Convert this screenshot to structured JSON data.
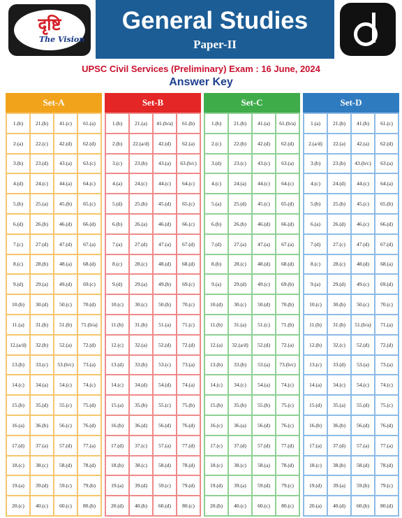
{
  "header": {
    "logo_hindi": "दृष्टि",
    "logo_sub": "The Vision",
    "title": "General Studies",
    "paper": "Paper-II",
    "exam": "UPSC Civil Services (Preliminary) Exam : 16 June, 2024",
    "answer_key": "Answer Key",
    "colors": {
      "banner": "#1c5d96",
      "exam_text": "#c8102e",
      "answer_key_text": "#1f3f8f"
    }
  },
  "sets": [
    {
      "name": "Set-A",
      "color": "#f2a31c",
      "columns": [
        [
          "1.(b)",
          "2.(a)",
          "3.(b)",
          "4.(d)",
          "5.(b)",
          "6.(d)",
          "7.(c)",
          "8.(c)",
          "9.(d)",
          "10.(b)",
          "11.(a)",
          "12.(a/d)",
          "13.(b)",
          "14.(c)",
          "15.(b)",
          "16.(a)",
          "17.(d)",
          "18.(c)",
          "19.(a)",
          "20.(c)"
        ],
        [
          "21.(b)",
          "22.(c)",
          "23.(d)",
          "24.(c)",
          "25.(a)",
          "26.(b)",
          "27.(d)",
          "28.(b)",
          "29.(a)",
          "30.(d)",
          "31.(b)",
          "32.(b)",
          "33.(c)",
          "34.(a)",
          "35.(d)",
          "36.(b)",
          "37.(a)",
          "38.(c)",
          "39.(d)",
          "40.(c)"
        ],
        [
          "41.(c)",
          "42.(d)",
          "43.(a)",
          "44.(a)",
          "45.(b)",
          "46.(d)",
          "47.(d)",
          "48.(a)",
          "49.(d)",
          "50.(c)",
          "51.(b)",
          "52.(a)",
          "53.(b/c)",
          "54.(c)",
          "55.(c)",
          "56.(c)",
          "57.(d)",
          "58.(d)",
          "59.(c)",
          "60.(c)"
        ],
        [
          "61.(a)",
          "62.(d)",
          "63.(c)",
          "64.(c)",
          "65.(c)",
          "66.(d)",
          "67.(a)",
          "68.(d)",
          "69.(c)",
          "70.(d)",
          "71.(b/a)",
          "72.(d)",
          "73.(a)",
          "74.(c)",
          "75.(d)",
          "76.(d)",
          "77.(a)",
          "78.(d)",
          "79.(b)",
          "80.(b)"
        ]
      ]
    },
    {
      "name": "Set-B",
      "color": "#e52626",
      "columns": [
        [
          "1.(b)",
          "2.(b)",
          "3.(c)",
          "4.(a)",
          "5.(d)",
          "6.(b)",
          "7.(a)",
          "8.(c)",
          "9.(d)",
          "10.(c)",
          "11.(b)",
          "12.(c)",
          "13.(d)",
          "14.(c)",
          "15.(a)",
          "16.(b)",
          "17.(d)",
          "18.(b)",
          "19.(a)",
          "20.(d)"
        ],
        [
          "21.(a)",
          "22.(a/d)",
          "23.(b)",
          "24.(c)",
          "25.(b)",
          "26.(a)",
          "27.(d)",
          "28.(c)",
          "29.(a)",
          "30.(c)",
          "31.(b)",
          "32.(a)",
          "33.(b)",
          "34.(d)",
          "35.(b)",
          "36.(d)",
          "37.(c)",
          "38.(c)",
          "39.(d)",
          "40.(b)"
        ],
        [
          "41.(b/a)",
          "42.(d)",
          "43.(a)",
          "44.(c)",
          "45.(d)",
          "46.(d)",
          "47.(a)",
          "48.(d)",
          "49.(b)",
          "50.(b)",
          "51.(a)",
          "52.(d)",
          "53.(c)",
          "54.(d)",
          "55.(c)",
          "56.(d)",
          "57.(a)",
          "58.(d)",
          "59.(c)",
          "60.(d)"
        ],
        [
          "61.(b)",
          "62.(a)",
          "63.(b/c)",
          "64.(c)",
          "65.(c)",
          "66.(c)",
          "67.(d)",
          "68.(d)",
          "69.(c)",
          "70.(c)",
          "71.(c)",
          "72.(d)",
          "73.(a)",
          "74.(a)",
          "75.(b)",
          "76.(d)",
          "77.(d)",
          "78.(d)",
          "79.(d)",
          "80.(c)"
        ]
      ]
    },
    {
      "name": "Set-C",
      "color": "#3fac4a",
      "columns": [
        [
          "1.(b)",
          "2.(c)",
          "3.(d)",
          "4.(c)",
          "5.(a)",
          "6.(b)",
          "7.(d)",
          "8.(b)",
          "9.(a)",
          "10.(d)",
          "11.(b)",
          "12.(a)",
          "13.(b)",
          "14.(c)",
          "15.(b)",
          "16.(c)",
          "17.(c)",
          "18.(c)",
          "19.(d)",
          "20.(b)"
        ],
        [
          "21.(b)",
          "22.(b)",
          "23.(c)",
          "24.(a)",
          "25.(d)",
          "26.(b)",
          "27.(a)",
          "28.(c)",
          "29.(d)",
          "30.(c)",
          "31.(a)",
          "32.(a/d)",
          "33.(b)",
          "34.(c)",
          "35.(b)",
          "36.(a)",
          "37.(d)",
          "38.(c)",
          "39.(a)",
          "40.(c)"
        ],
        [
          "41.(a)",
          "42.(d)",
          "43.(c)",
          "44.(c)",
          "45.(c)",
          "46.(d)",
          "47.(a)",
          "48.(d)",
          "49.(c)",
          "50.(d)",
          "51.(c)",
          "52.(d)",
          "53.(a)",
          "54.(a)",
          "55.(b)",
          "56.(d)",
          "57.(d)",
          "58.(a)",
          "59.(d)",
          "60.(c)"
        ],
        [
          "61.(b/a)",
          "62.(d)",
          "63.(a)",
          "64.(c)",
          "65.(d)",
          "66.(d)",
          "67.(a)",
          "68.(d)",
          "69.(b)",
          "70.(b)",
          "71.(b)",
          "72.(a)",
          "73.(b/c)",
          "74.(c)",
          "75.(c)",
          "76.(c)",
          "77.(d)",
          "78.(d)",
          "79.(c)",
          "80.(c)"
        ]
      ]
    },
    {
      "name": "Set-D",
      "color": "#2f7bc0",
      "columns": [
        [
          "1.(a)",
          "2.(a/d)",
          "3.(b)",
          "4.(c)",
          "5.(b)",
          "6.(a)",
          "7.(d)",
          "8.(c)",
          "9.(a)",
          "10.(c)",
          "11.(b)",
          "12.(b)",
          "13.(c)",
          "14.(a)",
          "15.(d)",
          "16.(b)",
          "17.(a)",
          "18.(c)",
          "19.(d)",
          "20.(a)"
        ],
        [
          "21.(b)",
          "22.(a)",
          "23.(b)",
          "24.(d)",
          "25.(b)",
          "26.(d)",
          "27.(c)",
          "28.(c)",
          "29.(d)",
          "30.(b)",
          "31.(b)",
          "32.(c)",
          "33.(d)",
          "34.(c)",
          "35.(a)",
          "36.(b)",
          "37.(d)",
          "38.(b)",
          "39.(a)",
          "40.(d)"
        ],
        [
          "41.(b)",
          "42.(a)",
          "43.(b/c)",
          "44.(c)",
          "45.(c)",
          "46.(c)",
          "47.(d)",
          "48.(d)",
          "49.(c)",
          "50.(c)",
          "51.(b/a)",
          "52.(d)",
          "53.(a)",
          "54.(c)",
          "55.(d)",
          "56.(d)",
          "57.(a)",
          "58.(d)",
          "59.(b)",
          "60.(b)"
        ],
        [
          "61.(c)",
          "62.(d)",
          "63.(a)",
          "64.(a)",
          "65.(b)",
          "66.(d)",
          "67.(d)",
          "68.(a)",
          "69.(d)",
          "70.(c)",
          "71.(a)",
          "72.(d)",
          "73.(a)",
          "74.(c)",
          "75.(c)",
          "76.(d)",
          "77.(a)",
          "78.(d)",
          "79.(c)",
          "80.(d)"
        ]
      ]
    }
  ]
}
